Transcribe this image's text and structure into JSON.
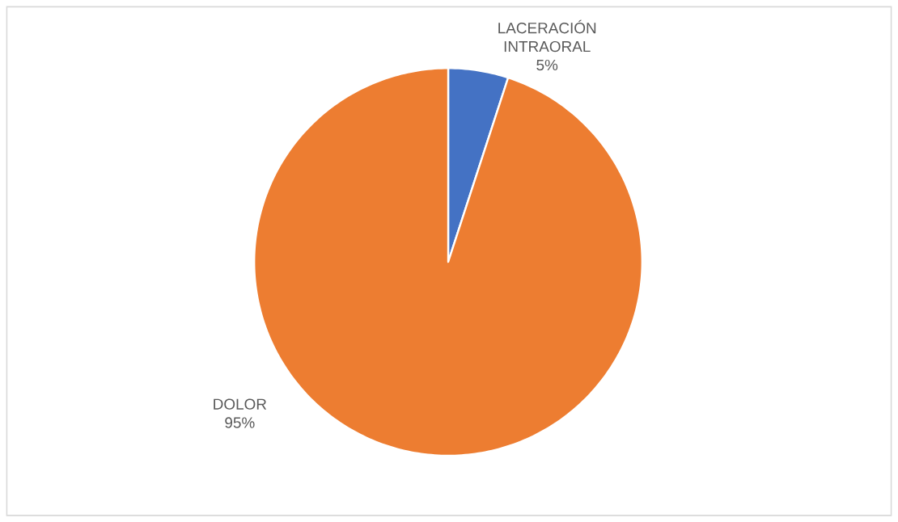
{
  "chart_data": {
    "type": "pie",
    "categories": [
      "LACERACIÓN INTRAORAL",
      "DOLOR"
    ],
    "values": [
      5,
      95
    ],
    "colors": [
      "#4472c4",
      "#ed7d31"
    ],
    "value_labels": [
      "5%",
      "95%"
    ]
  }
}
